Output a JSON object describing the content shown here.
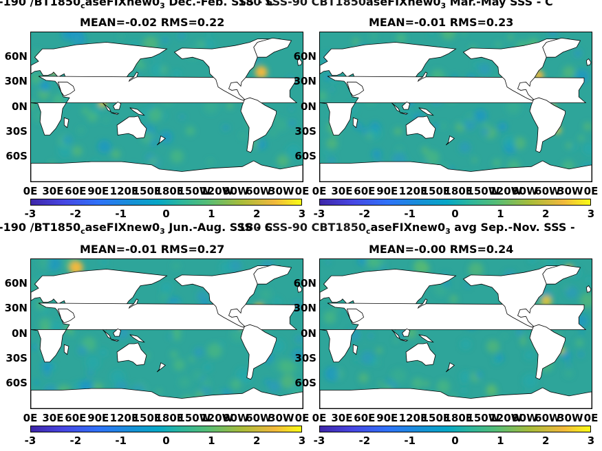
{
  "chart_data": [
    {
      "type": "heatmap",
      "title_prefix": "-190 /BT1850",
      "title_sub": "c",
      "title_mid": "aseFIXnew0",
      "title_sub2": "3",
      "title_suffix": " Dec.-Feb. SSS - C",
      "overlap_text": "180 SSS-90 CBT1850",
      "stats": "MEAN=-0.02   RMS=0.22",
      "lat_ticks": [
        "60N",
        "30N",
        "0N",
        "30S",
        "60S"
      ],
      "lon_ticks": [
        "0E",
        "30E",
        "60E",
        "90E",
        "120E",
        "150E",
        "180E",
        "150W",
        "120W",
        "90W",
        "60W",
        "30W",
        "0E"
      ],
      "colorbar_ticks": [
        "-3",
        "-2",
        "-1",
        "0",
        "1",
        "2",
        "3"
      ],
      "clim": [
        -3,
        3
      ]
    },
    {
      "type": "heatmap",
      "title_prefix": "",
      "title_sub": "",
      "title_mid": "aseFIXnew0",
      "title_sub2": "3",
      "title_suffix": " Mar.-May SSS - C",
      "overlap_text": "",
      "stats": "MEAN=-0.01   RMS=0.23",
      "lat_ticks": [
        "60N",
        "30N",
        "0N",
        "30S",
        "60S"
      ],
      "lon_ticks": [
        "0E",
        "30E",
        "60E",
        "90E",
        "120E",
        "150E",
        "180E",
        "150W",
        "120W",
        "90W",
        "60W",
        "30W",
        "0E"
      ],
      "colorbar_ticks": [
        "-3",
        "-2",
        "-1",
        "0",
        "1",
        "2",
        "3"
      ],
      "clim": [
        -3,
        3
      ]
    },
    {
      "type": "heatmap",
      "title_prefix": "-190 /BT1850",
      "title_sub": "c",
      "title_mid": "aseFIXnew0",
      "title_sub2": "3",
      "title_suffix": " Jun.-Aug. SSS - C",
      "overlap_text": "180 SSS-90 CBT1850",
      "stats": "MEAN=-0.01   RMS=0.27",
      "lat_ticks": [
        "60N",
        "30N",
        "0N",
        "30S",
        "60S"
      ],
      "lon_ticks": [
        "0E",
        "30E",
        "60E",
        "90E",
        "120E",
        "150E",
        "180E",
        "150W",
        "120W",
        "90W",
        "60W",
        "30W",
        "0E"
      ],
      "colorbar_ticks": [
        "-3",
        "-2",
        "-1",
        "0",
        "1",
        "2",
        "3"
      ],
      "clim": [
        -3,
        3
      ]
    },
    {
      "type": "heatmap",
      "title_prefix": "",
      "title_sub": "c",
      "title_mid": "aseFIXnew0",
      "title_sub2": "3",
      "title_suffix": " avg Sep.-Nov. SSS -",
      "overlap_text": "",
      "stats": "MEAN=-0.00   RMS=0.24",
      "lat_ticks": [
        "60N",
        "30N",
        "0N",
        "30S",
        "60S"
      ],
      "lon_ticks": [
        "0E",
        "30E",
        "60E",
        "90E",
        "120E",
        "150E",
        "180E",
        "150W",
        "120W",
        "90W",
        "60W",
        "30W",
        "0E"
      ],
      "colorbar_ticks": [
        "-3",
        "-2",
        "-1",
        "0",
        "1",
        "2",
        "3"
      ],
      "clim": [
        -3,
        3
      ]
    }
  ],
  "colors": {
    "ocean": "#2ea59a",
    "land": "#ffffff",
    "high": "#f1c232",
    "low": "#1e7fd6"
  }
}
